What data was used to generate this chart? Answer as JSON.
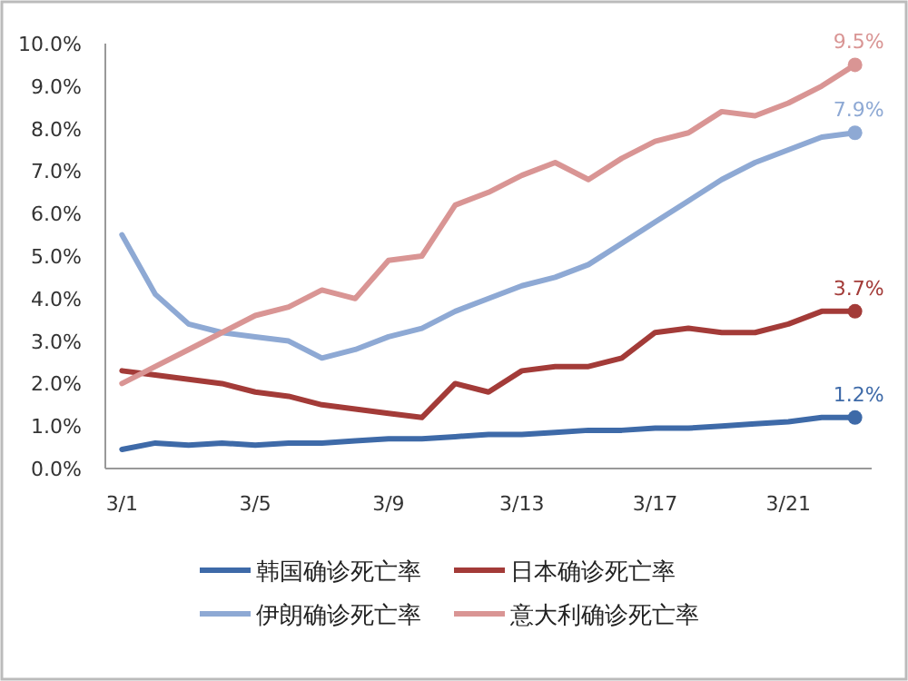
{
  "chart_data": {
    "type": "line",
    "categories": [
      "3/1",
      null,
      null,
      null,
      "3/5",
      null,
      null,
      null,
      "3/9",
      null,
      null,
      null,
      "3/13",
      null,
      null,
      null,
      "3/17",
      null,
      null,
      null,
      "3/21",
      null,
      null
    ],
    "series": [
      {
        "name": "韩国确诊死亡率",
        "color": "#3e6aa8",
        "values": [
          0.45,
          0.6,
          0.55,
          0.6,
          0.55,
          0.6,
          0.6,
          0.65,
          0.7,
          0.7,
          0.75,
          0.8,
          0.8,
          0.85,
          0.9,
          0.9,
          0.95,
          0.95,
          1.0,
          1.05,
          1.1,
          1.2,
          1.2
        ],
        "value_labels": [
          null,
          null,
          null,
          null,
          null,
          null,
          null,
          null,
          null,
          null,
          null,
          null,
          null,
          null,
          null,
          null,
          null,
          null,
          null,
          null,
          null,
          null,
          "1.2%"
        ]
      },
      {
        "name": "日本确诊死亡率",
        "color": "#a33b38",
        "values": [
          2.3,
          2.2,
          2.1,
          2.0,
          1.8,
          1.7,
          1.5,
          1.4,
          1.3,
          1.2,
          2.0,
          1.8,
          2.3,
          2.4,
          2.4,
          2.6,
          3.2,
          3.3,
          3.2,
          3.2,
          3.4,
          3.7,
          3.7
        ],
        "value_labels": [
          null,
          null,
          null,
          null,
          null,
          null,
          null,
          null,
          null,
          null,
          null,
          null,
          null,
          null,
          null,
          null,
          null,
          null,
          null,
          null,
          null,
          null,
          "3.7%"
        ]
      },
      {
        "name": "伊朗确诊死亡率",
        "color": "#8ea9d4",
        "values": [
          5.5,
          4.1,
          3.4,
          3.2,
          3.1,
          3.0,
          2.6,
          2.8,
          3.1,
          3.3,
          3.7,
          4.0,
          4.3,
          4.5,
          4.8,
          5.3,
          5.8,
          6.3,
          6.8,
          7.2,
          7.5,
          7.8,
          7.9
        ],
        "value_labels": [
          null,
          null,
          null,
          null,
          null,
          null,
          null,
          null,
          null,
          null,
          null,
          null,
          null,
          null,
          null,
          null,
          null,
          null,
          null,
          null,
          null,
          null,
          "7.9%"
        ]
      },
      {
        "name": "意大利确诊死亡率",
        "color": "#d99594",
        "values": [
          2.0,
          2.4,
          2.8,
          3.2,
          3.6,
          3.8,
          4.2,
          4.0,
          4.9,
          5.0,
          6.2,
          6.5,
          6.9,
          7.2,
          6.8,
          7.3,
          7.7,
          7.9,
          8.4,
          8.3,
          8.6,
          9.0,
          9.5
        ],
        "value_labels": [
          null,
          null,
          null,
          null,
          null,
          null,
          null,
          null,
          null,
          null,
          null,
          null,
          null,
          null,
          null,
          null,
          null,
          null,
          null,
          null,
          null,
          null,
          "9.5%"
        ]
      }
    ],
    "ylim": [
      0,
      10
    ],
    "yticks": [
      {
        "value": 0,
        "label": "0.0%"
      },
      {
        "value": 1,
        "label": "1.0%"
      },
      {
        "value": 2,
        "label": "2.0%"
      },
      {
        "value": 3,
        "label": "3.0%"
      },
      {
        "value": 4,
        "label": "4.0%"
      },
      {
        "value": 5,
        "label": "5.0%"
      },
      {
        "value": 6,
        "label": "6.0%"
      },
      {
        "value": 7,
        "label": "7.0%"
      },
      {
        "value": 8,
        "label": "8.0%"
      },
      {
        "value": 9,
        "label": "9.0%"
      },
      {
        "value": 10,
        "label": "10.0%"
      }
    ],
    "legend": "bottom",
    "grid": false
  }
}
